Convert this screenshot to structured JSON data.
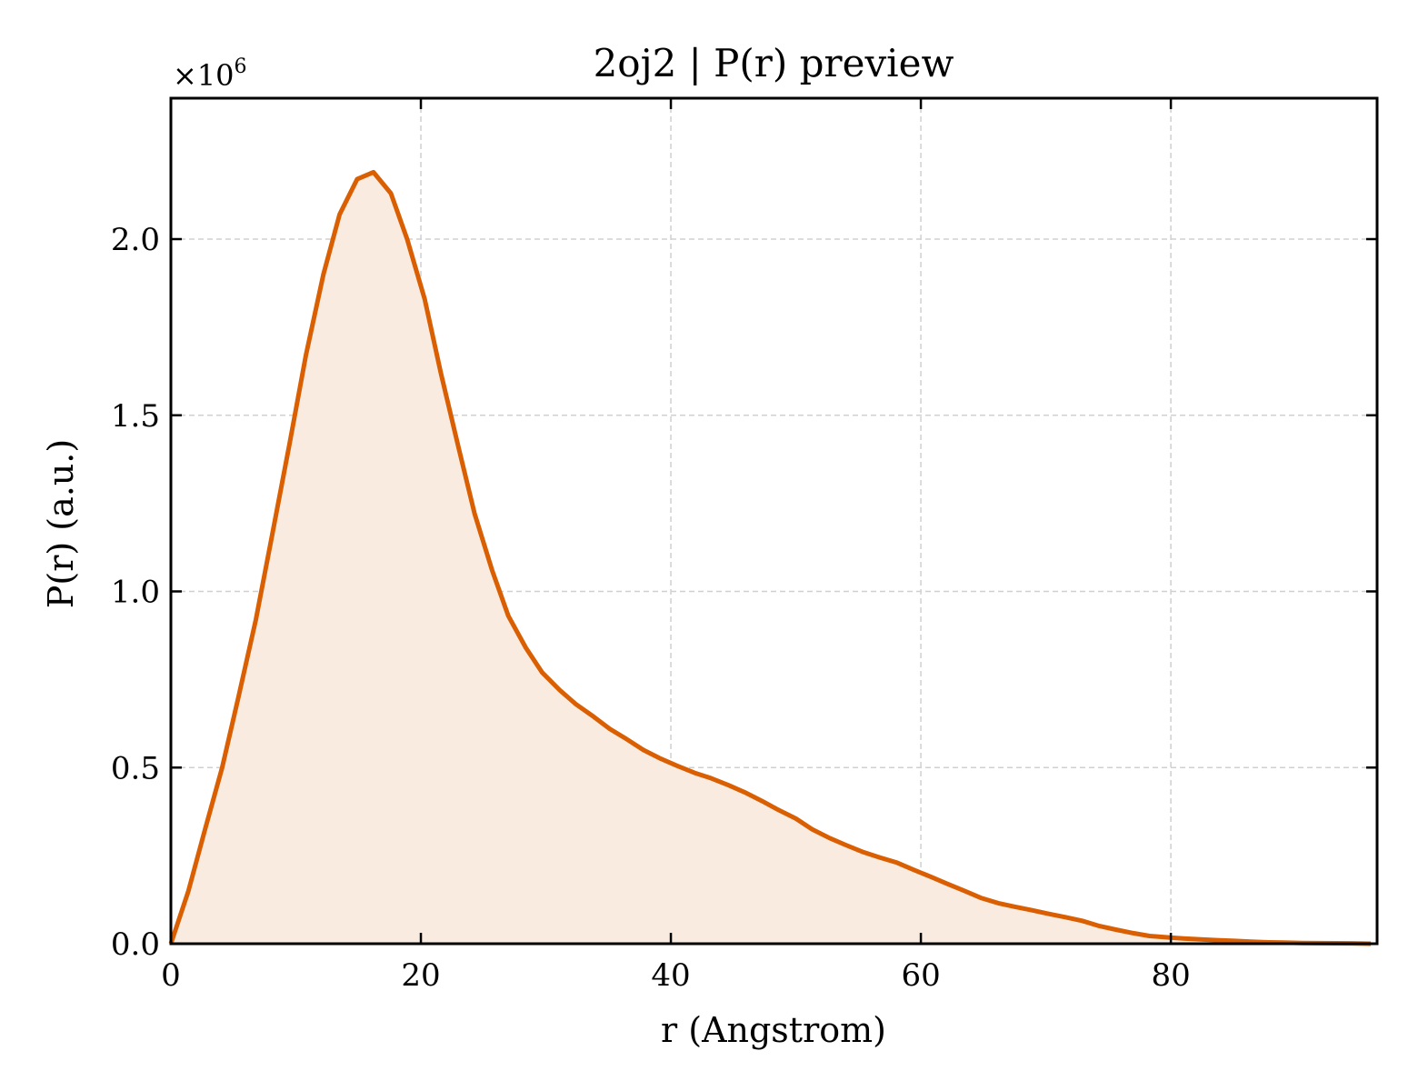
{
  "chart_data": {
    "type": "area",
    "title": "2oj2 | P(r) preview",
    "xlabel": "r (Angstrom)",
    "ylabel": "P(r) (a.u.)",
    "y_multiplier_base": "×10",
    "y_multiplier_exponent": "6",
    "xlim": [
      0,
      96.5
    ],
    "ylim": [
      0,
      2.4
    ],
    "x_ticks": [
      0,
      20,
      40,
      60,
      80
    ],
    "x_tick_labels": [
      "0",
      "20",
      "40",
      "60",
      "80"
    ],
    "y_ticks": [
      0,
      0.5,
      1.0,
      1.5,
      2.0
    ],
    "y_tick_labels": [
      "0.0",
      "0.5",
      "1.0",
      "1.5",
      "2.0"
    ],
    "grid": true,
    "line_color": "#d95f02",
    "fill_color": "#faebe0",
    "series": [
      {
        "x": [
          0,
          1.4,
          2.7,
          4.1,
          5.4,
          6.8,
          8.1,
          9.5,
          10.8,
          12.2,
          13.5,
          14.9,
          16.2,
          17.6,
          18.9,
          20.3,
          21.6,
          23.0,
          24.3,
          25.7,
          27.0,
          28.4,
          29.7,
          31.1,
          32.4,
          33.8,
          35.1,
          36.5,
          37.8,
          39.2,
          40.5,
          41.9,
          43.2,
          44.6,
          45.9,
          47.3,
          48.6,
          50.0,
          51.3,
          52.7,
          54.0,
          55.4,
          56.7,
          58.1,
          59.4,
          60.8,
          62.1,
          63.5,
          64.8,
          66.2,
          67.5,
          68.9,
          70.2,
          71.6,
          72.9,
          74.3,
          75.6,
          77.0,
          78.3,
          79.7,
          81.0,
          82.4,
          83.7,
          85.1,
          86.4,
          87.8,
          89.1,
          90.5,
          91.8,
          93.2,
          94.5,
          96.0
        ],
        "y": [
          0.0,
          0.15,
          0.32,
          0.5,
          0.7,
          0.92,
          1.16,
          1.42,
          1.67,
          1.9,
          2.07,
          2.17,
          2.19,
          2.13,
          2.0,
          1.83,
          1.62,
          1.41,
          1.22,
          1.06,
          0.93,
          0.84,
          0.77,
          0.72,
          0.68,
          0.645,
          0.61,
          0.58,
          0.55,
          0.525,
          0.505,
          0.485,
          0.47,
          0.45,
          0.43,
          0.405,
          0.38,
          0.355,
          0.325,
          0.3,
          0.28,
          0.26,
          0.245,
          0.23,
          0.21,
          0.19,
          0.17,
          0.15,
          0.13,
          0.115,
          0.105,
          0.095,
          0.085,
          0.075,
          0.065,
          0.05,
          0.04,
          0.03,
          0.022,
          0.018,
          0.015,
          0.012,
          0.01,
          0.008,
          0.006,
          0.004,
          0.003,
          0.002,
          0.0015,
          0.0012,
          0.001,
          0.0
        ]
      }
    ]
  }
}
